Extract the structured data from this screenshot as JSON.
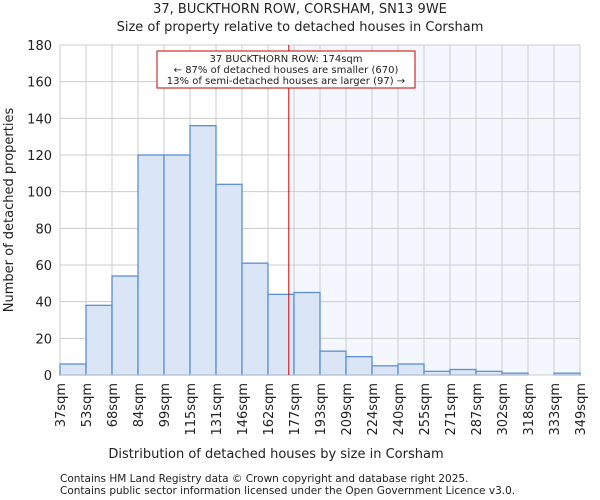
{
  "chart_data": {
    "type": "bar",
    "title": "37, BUCKTHORN ROW, CORSHAM, SN13 9WE",
    "subtitle": "Size of property relative to detached houses in Corsham",
    "xlabel": "Distribution of detached houses by size in Corsham",
    "ylabel": "Number of detached properties",
    "bin_edges": [
      37,
      53,
      68,
      84,
      99,
      115,
      131,
      146,
      162,
      177,
      193,
      209,
      224,
      240,
      255,
      271,
      287,
      302,
      318,
      333,
      349
    ],
    "tick_labels": [
      "37sqm",
      "53sqm",
      "68sqm",
      "84sqm",
      "99sqm",
      "115sqm",
      "131sqm",
      "146sqm",
      "162sqm",
      "177sqm",
      "193sqm",
      "209sqm",
      "224sqm",
      "240sqm",
      "255sqm",
      "271sqm",
      "287sqm",
      "302sqm",
      "318sqm",
      "333sqm",
      "349sqm"
    ],
    "values": [
      6,
      38,
      54,
      120,
      120,
      136,
      104,
      61,
      44,
      45,
      13,
      10,
      5,
      6,
      2,
      3,
      2,
      1,
      0,
      1
    ],
    "ylim": [
      0,
      180
    ],
    "yticks": [
      0,
      20,
      40,
      60,
      80,
      100,
      120,
      140,
      160,
      180
    ],
    "grid": true,
    "marker_value": 174,
    "annotation": [
      "37 BUCKTHORN ROW: 174sqm",
      "← 87% of detached houses are smaller (670)",
      "13% of semi-detached houses are larger (97) →"
    ],
    "colors": {
      "bar_fill": "#dae5f5",
      "bar_stroke": "#5b8fd6",
      "marker": "#cc0000",
      "highlight_bg": "#f4f7fe",
      "grid": "#cccccc"
    }
  },
  "footer": [
    "Contains HM Land Registry data © Crown copyright and database right 2025.",
    "Contains public sector information licensed under the Open Government Licence v3.0."
  ]
}
